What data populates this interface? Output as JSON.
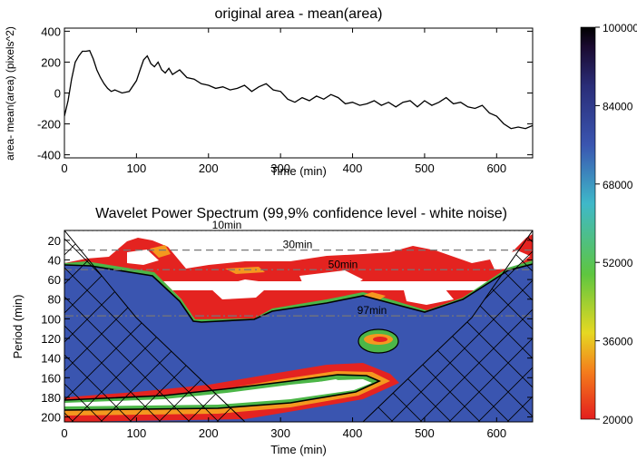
{
  "chart_data": [
    {
      "type": "line",
      "title": "original area - mean(area)",
      "xlabel": "Time (min)",
      "ylabel": "area- mean(area) (pixels^2)",
      "xlim": [
        0,
        650
      ],
      "ylim": [
        -420,
        420
      ],
      "x_ticks": [
        0,
        100,
        200,
        300,
        400,
        500,
        600
      ],
      "y_ticks": [
        -400,
        -200,
        0,
        200,
        400
      ],
      "grid": false,
      "series": [
        {
          "x": [
            0,
            5,
            10,
            15,
            20,
            25,
            30,
            35,
            40,
            45,
            50,
            55,
            60,
            65,
            70,
            80,
            90,
            100,
            105,
            110,
            115,
            120,
            125,
            130,
            135,
            140,
            145,
            150,
            160,
            170,
            180,
            190,
            200,
            210,
            220,
            230,
            240,
            250,
            260,
            270,
            280,
            290,
            300,
            310,
            320,
            330,
            340,
            350,
            360,
            370,
            380,
            390,
            400,
            410,
            420,
            430,
            440,
            450,
            460,
            470,
            480,
            490,
            500,
            510,
            520,
            530,
            540,
            550,
            560,
            570,
            580,
            590,
            600,
            610,
            620,
            630,
            640,
            650
          ],
          "y": [
            -150,
            -50,
            90,
            200,
            240,
            270,
            270,
            275,
            220,
            150,
            100,
            60,
            30,
            10,
            20,
            0,
            10,
            80,
            150,
            215,
            240,
            190,
            170,
            200,
            150,
            130,
            160,
            120,
            150,
            100,
            90,
            60,
            50,
            30,
            40,
            20,
            30,
            50,
            10,
            40,
            60,
            20,
            10,
            -40,
            -60,
            -30,
            -50,
            -20,
            -40,
            -10,
            -30,
            -70,
            -60,
            -80,
            -70,
            -50,
            -80,
            -60,
            -90,
            -60,
            -50,
            -90,
            -50,
            -80,
            -60,
            -30,
            -70,
            -60,
            -90,
            -100,
            -80,
            -130,
            -150,
            -200,
            -230,
            -220,
            -230,
            -210
          ]
        }
      ]
    },
    {
      "type": "heatmap",
      "title": "Wavelet Power Spectrum (99,9% confidence level - white noise)",
      "xlabel": "Time (min)",
      "ylabel": "Period (min)",
      "xlim": [
        0,
        650
      ],
      "ylim": [
        205,
        10
      ],
      "x_ticks": [
        0,
        100,
        200,
        300,
        400,
        500,
        600
      ],
      "y_ticks": [
        20,
        40,
        60,
        80,
        100,
        120,
        140,
        160,
        180,
        200
      ],
      "period_lines": [
        {
          "label": "10min",
          "period": 10
        },
        {
          "label": "30min",
          "period": 30
        },
        {
          "label": "50min",
          "period": 50
        },
        {
          "label": "97min",
          "period": 97
        }
      ],
      "colorbar": {
        "ticks": [
          "100000",
          "84000",
          "68000",
          "52000",
          "36000",
          "20000"
        ],
        "min": 20000,
        "max": 100000,
        "colors": [
          "#e41e1e",
          "#f47c1c",
          "#e6d822",
          "#5ec640",
          "#3fb8c9",
          "#3a55b0",
          "#2a2d78",
          "#1a0a30",
          "#000000"
        ]
      },
      "colors": {
        "blue": "#3a55b0",
        "green": "#4cb648",
        "orange": "#f4981f",
        "yellow": "#e0cd2c",
        "red": "#e42320",
        "white": "#ffffff"
      }
    }
  ]
}
